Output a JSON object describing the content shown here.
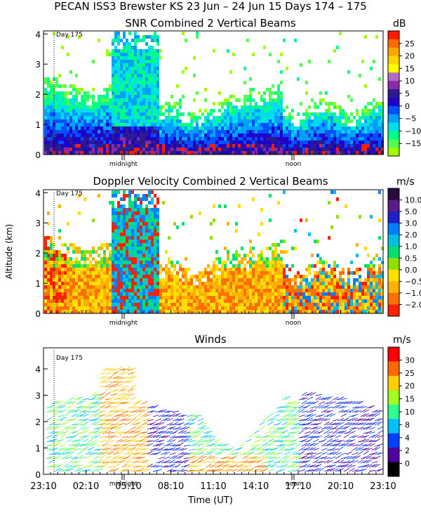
{
  "page_title": "PECAN ISS3 Brewster KS  23 Jun – 24 Jun 15 Days 174 – 175",
  "colors": {
    "axis": "#000000",
    "frame": "#000000",
    "background": "#ffffff"
  },
  "chart_data": [
    {
      "type": "heatmap",
      "title": "SNR Combined 2 Vertical Beams",
      "ylabel": "",
      "xlabel": "",
      "ylim": [
        0,
        4.1
      ],
      "yticks": [
        "0",
        "1",
        "2",
        "3",
        "4"
      ],
      "day_marker": "Day 175",
      "x_annotations": [
        "midnight",
        "noon"
      ],
      "colorbar": {
        "unit": "dB",
        "labels": [
          "25",
          "20",
          "15",
          "10",
          "5",
          "0",
          "−5",
          "−10",
          "−15"
        ],
        "colors": [
          "#ff1e00",
          "#ff6a00",
          "#ffa500",
          "#ffd400",
          "#ffff00",
          "#b36ac8",
          "#8b2aa8",
          "#2b1b8c",
          "#1e00c8",
          "#0050ff",
          "#00a0ff",
          "#00ddee",
          "#00ff88",
          "#50ff50",
          "#a0ff00"
        ]
      }
    },
    {
      "type": "heatmap",
      "title": "Doppler Velocity Combined 2 Vertical Beams",
      "ylabel": "Altitude (km)",
      "xlabel": "",
      "ylim": [
        0,
        4.1
      ],
      "yticks": [
        "0",
        "1",
        "2",
        "3",
        "4"
      ],
      "day_marker": "Day 175",
      "x_annotations": [
        "midnight",
        "noon"
      ],
      "colorbar": {
        "unit": "m/s",
        "labels": [
          "10.0",
          "5.0",
          "3.0",
          "2.0",
          "1.0",
          "0.5",
          "0.0",
          "−0.5",
          "−1.0",
          "−2.0"
        ],
        "colors": [
          "#2a0a3c",
          "#5a1a8c",
          "#2020c8",
          "#0080ff",
          "#00c0e0",
          "#00e070",
          "#90e000",
          "#ffe000",
          "#ffb000",
          "#ff7000",
          "#ff2000"
        ]
      }
    },
    {
      "type": "scatter",
      "title": "Winds",
      "ylabel": "",
      "xlabel": "Time (UT)",
      "ylim": [
        0,
        4.8
      ],
      "yticks": [
        "0",
        "1",
        "2",
        "3",
        "4"
      ],
      "xticks": [
        "23:10",
        "02:10",
        "05:10",
        "08:10",
        "11:10",
        "14:10",
        "17:10",
        "20:10",
        "23:10"
      ],
      "day_marker": "Day 175",
      "x_annotations": [
        "midnight",
        "noon"
      ],
      "colorbar": {
        "unit": "m/s",
        "labels": [
          "30",
          "25",
          "20",
          "15",
          "10",
          "8",
          "4",
          "2",
          "0"
        ],
        "colors": [
          "#ff0000",
          "#ff6a00",
          "#ffd000",
          "#a0ff20",
          "#30ff90",
          "#00c0ff",
          "#0040ff",
          "#5000a0",
          "#000000"
        ]
      }
    }
  ]
}
